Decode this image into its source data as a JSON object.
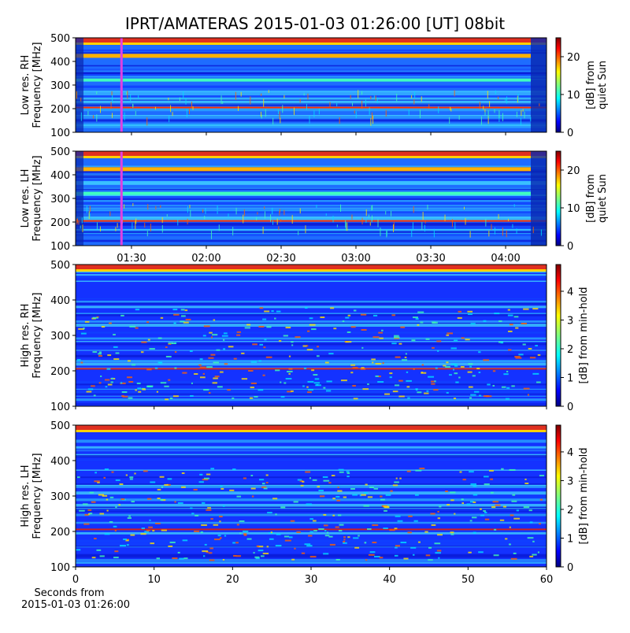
{
  "title": "IPRT/AMATERAS 2015-01-03 01:26:00 [UT]   08bit",
  "chart_data": [
    {
      "type": "heatmap",
      "ylabel": [
        "Low res. RH",
        "Frequency [MHz]"
      ],
      "ylim": [
        100,
        500
      ],
      "yticks": [
        100,
        200,
        300,
        400,
        500
      ],
      "xlim": [
        67.6,
        256.4
      ],
      "xticks": [
        90,
        120,
        150,
        180,
        210,
        240
      ],
      "highlight_x": 86,
      "colorbar_label": [
        "[dB] from",
        "quiet Sun"
      ],
      "clim": [
        0,
        25
      ],
      "cticks": [
        0,
        10,
        20
      ]
    },
    {
      "type": "heatmap",
      "ylabel": [
        "Low res. LH",
        "Frequency [MHz]"
      ],
      "ylim": [
        100,
        500
      ],
      "yticks": [
        100,
        200,
        300,
        400,
        500
      ],
      "xlim": [
        67.6,
        256.4
      ],
      "xticks": [
        {
          "value": 90,
          "label": "01:30"
        },
        {
          "value": 120,
          "label": "02:00"
        },
        {
          "value": 150,
          "label": "02:30"
        },
        {
          "value": 180,
          "label": "03:00"
        },
        {
          "value": 210,
          "label": "03:30"
        },
        {
          "value": 240,
          "label": "04:00"
        }
      ],
      "highlight_x": 86,
      "colorbar_label": [
        "[dB] from",
        "quiet Sun"
      ],
      "clim": [
        0,
        25
      ],
      "cticks": [
        0,
        10,
        20
      ]
    },
    {
      "type": "heatmap",
      "ylabel": [
        "High res. RH",
        "Frequency [MHz]"
      ],
      "ylim": [
        100,
        500
      ],
      "yticks": [
        100,
        200,
        300,
        400,
        500
      ],
      "xlim": [
        0,
        60
      ],
      "xticks": [
        0,
        10,
        20,
        30,
        40,
        50,
        60
      ],
      "colorbar_label": [
        "[dB] from min-hold"
      ],
      "clim": [
        0,
        4.93
      ],
      "cticks": [
        0,
        1,
        2,
        3,
        4
      ]
    },
    {
      "type": "heatmap",
      "ylabel": [
        "High res. LH",
        "Frequency [MHz]"
      ],
      "ylim": [
        100,
        500
      ],
      "yticks": [
        100,
        200,
        300,
        400,
        500
      ],
      "xlim": [
        0,
        60
      ],
      "xticks": [
        0,
        10,
        20,
        30,
        40,
        50,
        60
      ],
      "xlabel": [
        "Seconds from",
        "2015-01-03 01:26:00"
      ],
      "show_xtick_labels": true,
      "colorbar_label": [
        "[dB] from min-hold"
      ],
      "clim": [
        0,
        4.93
      ],
      "cticks": [
        0,
        1,
        2,
        3,
        4
      ]
    }
  ]
}
